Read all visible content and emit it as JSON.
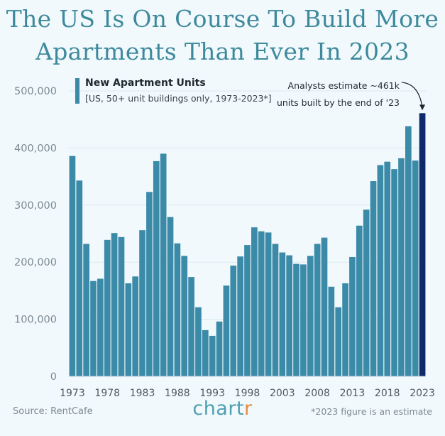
{
  "title_line1": "The US Is On Course To Build More",
  "title_line2": "Apartments Than Ever In 2023",
  "source": "Source: RentCafe",
  "footnote": "*2023 figure is an estimate",
  "brand": {
    "main": "chart",
    "accent": "r"
  },
  "colors": {
    "bar": "#3a8aa8",
    "highlight": "#0f2a6b",
    "axis_text": "#7c8a93",
    "title": "#3e8a9c",
    "background": "#f1f9fc"
  },
  "chart_data": {
    "type": "bar",
    "legend_title": "New Apartment Units",
    "legend_subtitle": "[US, 50+ unit buildings only, 1973-2023*]",
    "annotation_line1": "Analysts estimate ~461k",
    "annotation_line2": "units built by the end of '23",
    "ylim": [
      0,
      500000
    ],
    "yticks": [
      0,
      100000,
      200000,
      300000,
      400000,
      500000
    ],
    "ytick_labels": [
      "0",
      "100,000",
      "200,000",
      "300,000",
      "400,000",
      "500,000"
    ],
    "xtick_labels": [
      "1973",
      "1978",
      "1983",
      "1988",
      "1993",
      "1998",
      "2003",
      "2008",
      "2013",
      "2018",
      "2023"
    ],
    "grid": true,
    "highlight_year": 2023,
    "years": [
      1973,
      1974,
      1975,
      1976,
      1977,
      1978,
      1979,
      1980,
      1981,
      1982,
      1983,
      1984,
      1985,
      1986,
      1987,
      1988,
      1989,
      1990,
      1991,
      1992,
      1993,
      1994,
      1995,
      1996,
      1997,
      1998,
      1999,
      2000,
      2001,
      2002,
      2003,
      2004,
      2005,
      2006,
      2007,
      2008,
      2009,
      2010,
      2011,
      2012,
      2013,
      2014,
      2015,
      2016,
      2017,
      2018,
      2019,
      2020,
      2021,
      2022,
      2023
    ],
    "values": [
      386000,
      343000,
      232000,
      167000,
      171000,
      239000,
      251000,
      244000,
      163000,
      175000,
      256000,
      323000,
      377000,
      390000,
      279000,
      233000,
      211000,
      174000,
      121000,
      81000,
      71000,
      96000,
      159000,
      194000,
      210000,
      230000,
      261000,
      254000,
      252000,
      232000,
      217000,
      212000,
      197000,
      196000,
      211000,
      232000,
      243000,
      157000,
      121000,
      163000,
      209000,
      264000,
      292000,
      342000,
      370000,
      376000,
      363000,
      382000,
      438000,
      378000,
      461000
    ]
  }
}
